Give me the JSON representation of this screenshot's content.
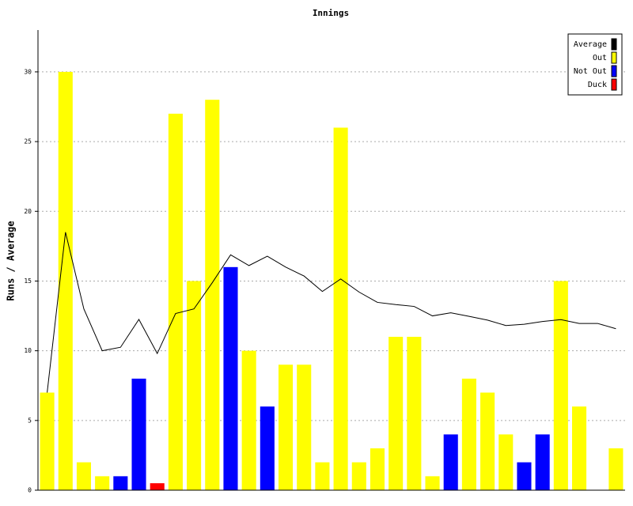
{
  "chart_data": {
    "type": "bar_line",
    "title": "Innings",
    "y_label": "Runs / Average",
    "categories": [
      null,
      null,
      null,
      null,
      null,
      null,
      null,
      null,
      null,
      null,
      null,
      null,
      null,
      null,
      null,
      null,
      null,
      null,
      null,
      null,
      null,
      null,
      null,
      null,
      null,
      null,
      null,
      null,
      null,
      null,
      null,
      null
    ],
    "series": [
      {
        "name": "Average",
        "color": "#000000",
        "kind": "line",
        "values": [
          7,
          18.5,
          13,
          10,
          10.25,
          12.25,
          9.8,
          12.67,
          13,
          14.88,
          16.88,
          16.11,
          16.78,
          16,
          15.36,
          14.25,
          15.15,
          14.21,
          13.47,
          13.31,
          13.18,
          12.5,
          12.72,
          12.47,
          12.2,
          11.81,
          11.9,
          12.1,
          12.23,
          11.96,
          11.96,
          11.58
        ]
      },
      {
        "name": "Out",
        "color": "#ffff00",
        "kind": "bar",
        "values": [
          7,
          30,
          2,
          1,
          null,
          null,
          null,
          27,
          15,
          28,
          null,
          10,
          null,
          9,
          9,
          2,
          26,
          2,
          3,
          11,
          11,
          1,
          null,
          8,
          7,
          4,
          null,
          null,
          15,
          6,
          null,
          3
        ]
      },
      {
        "name": "Not Out",
        "color": "#0000ff",
        "kind": "bar",
        "values": [
          null,
          null,
          null,
          null,
          1,
          8,
          null,
          null,
          null,
          null,
          16,
          null,
          6,
          null,
          null,
          null,
          null,
          null,
          null,
          null,
          null,
          null,
          4,
          null,
          null,
          null,
          2,
          4,
          null,
          null,
          null,
          null
        ]
      },
      {
        "name": "Duck",
        "color": "#ff0000",
        "kind": "bar",
        "values": [
          null,
          null,
          null,
          null,
          null,
          null,
          0.5,
          null,
          null,
          null,
          null,
          null,
          null,
          null,
          null,
          null,
          null,
          null,
          null,
          null,
          null,
          null,
          null,
          null,
          null,
          null,
          null,
          null,
          null,
          null,
          null,
          null
        ]
      }
    ],
    "ylim": [
      0,
      33
    ],
    "yticks": [
      0,
      5,
      10,
      15,
      20,
      25,
      30
    ],
    "grid": true,
    "legend": "top-right"
  }
}
